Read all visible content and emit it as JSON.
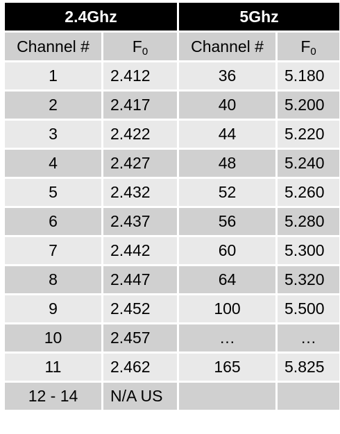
{
  "bands": {
    "left": "2.4Ghz",
    "right": "5Ghz"
  },
  "columns": {
    "channel": "Channel #",
    "freq_base": "F",
    "freq_sub": "0"
  },
  "rows": [
    {
      "ch24": "1",
      "f24": "2.412",
      "ch5": "36",
      "f5": "5.180"
    },
    {
      "ch24": "2",
      "f24": "2.417",
      "ch5": "40",
      "f5": "5.200"
    },
    {
      "ch24": "3",
      "f24": "2.422",
      "ch5": "44",
      "f5": "5.220"
    },
    {
      "ch24": "4",
      "f24": "2.427",
      "ch5": "48",
      "f5": "5.240"
    },
    {
      "ch24": "5",
      "f24": "2.432",
      "ch5": "52",
      "f5": "5.260"
    },
    {
      "ch24": "6",
      "f24": "2.437",
      "ch5": "56",
      "f5": "5.280"
    },
    {
      "ch24": "7",
      "f24": "2.442",
      "ch5": "60",
      "f5": "5.300"
    },
    {
      "ch24": "8",
      "f24": "2.447",
      "ch5": "64",
      "f5": "5.320"
    },
    {
      "ch24": "9",
      "f24": "2.452",
      "ch5": "100",
      "f5": "5.500"
    },
    {
      "ch24": "10",
      "f24": "2.457",
      "ch5": "…",
      "f5": "…"
    },
    {
      "ch24": "11",
      "f24": "2.462",
      "ch5": "165",
      "f5": "5.825"
    },
    {
      "ch24": "12 - 14",
      "f24": "N/A US",
      "ch5": "",
      "f5": ""
    }
  ]
}
